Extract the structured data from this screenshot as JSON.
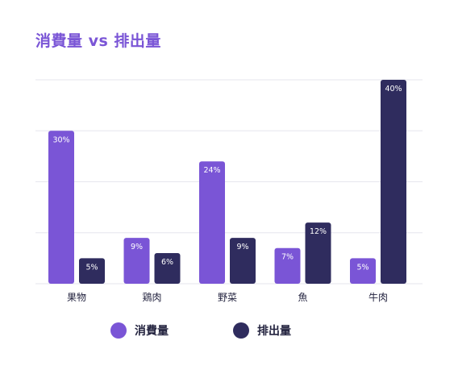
{
  "title": "消費量 vs 排出量",
  "colors": {
    "consumption": "#7a55d6",
    "emission": "#2f2c5e",
    "grid": "#e6e6ee",
    "title": "#7a55d6",
    "label": "#23233f"
  },
  "legend": {
    "consumption_label": "消費量",
    "emission_label": "排出量"
  },
  "chart_data": {
    "type": "bar",
    "title": "消費量 vs 排出量",
    "categories": [
      "果物",
      "鶏肉",
      "野菜",
      "魚",
      "牛肉"
    ],
    "series": [
      {
        "name": "消費量",
        "values": [
          30,
          9,
          24,
          7,
          5
        ],
        "labels": [
          "30%",
          "9%",
          "24%",
          "7%",
          "5%"
        ]
      },
      {
        "name": "排出量",
        "values": [
          5,
          6,
          9,
          12,
          40
        ],
        "labels": [
          "5%",
          "6%",
          "9%",
          "12%",
          "40%"
        ]
      }
    ],
    "unit": "%",
    "ylim": [
      0,
      40
    ],
    "grid": true,
    "legend_position": "bottom"
  }
}
